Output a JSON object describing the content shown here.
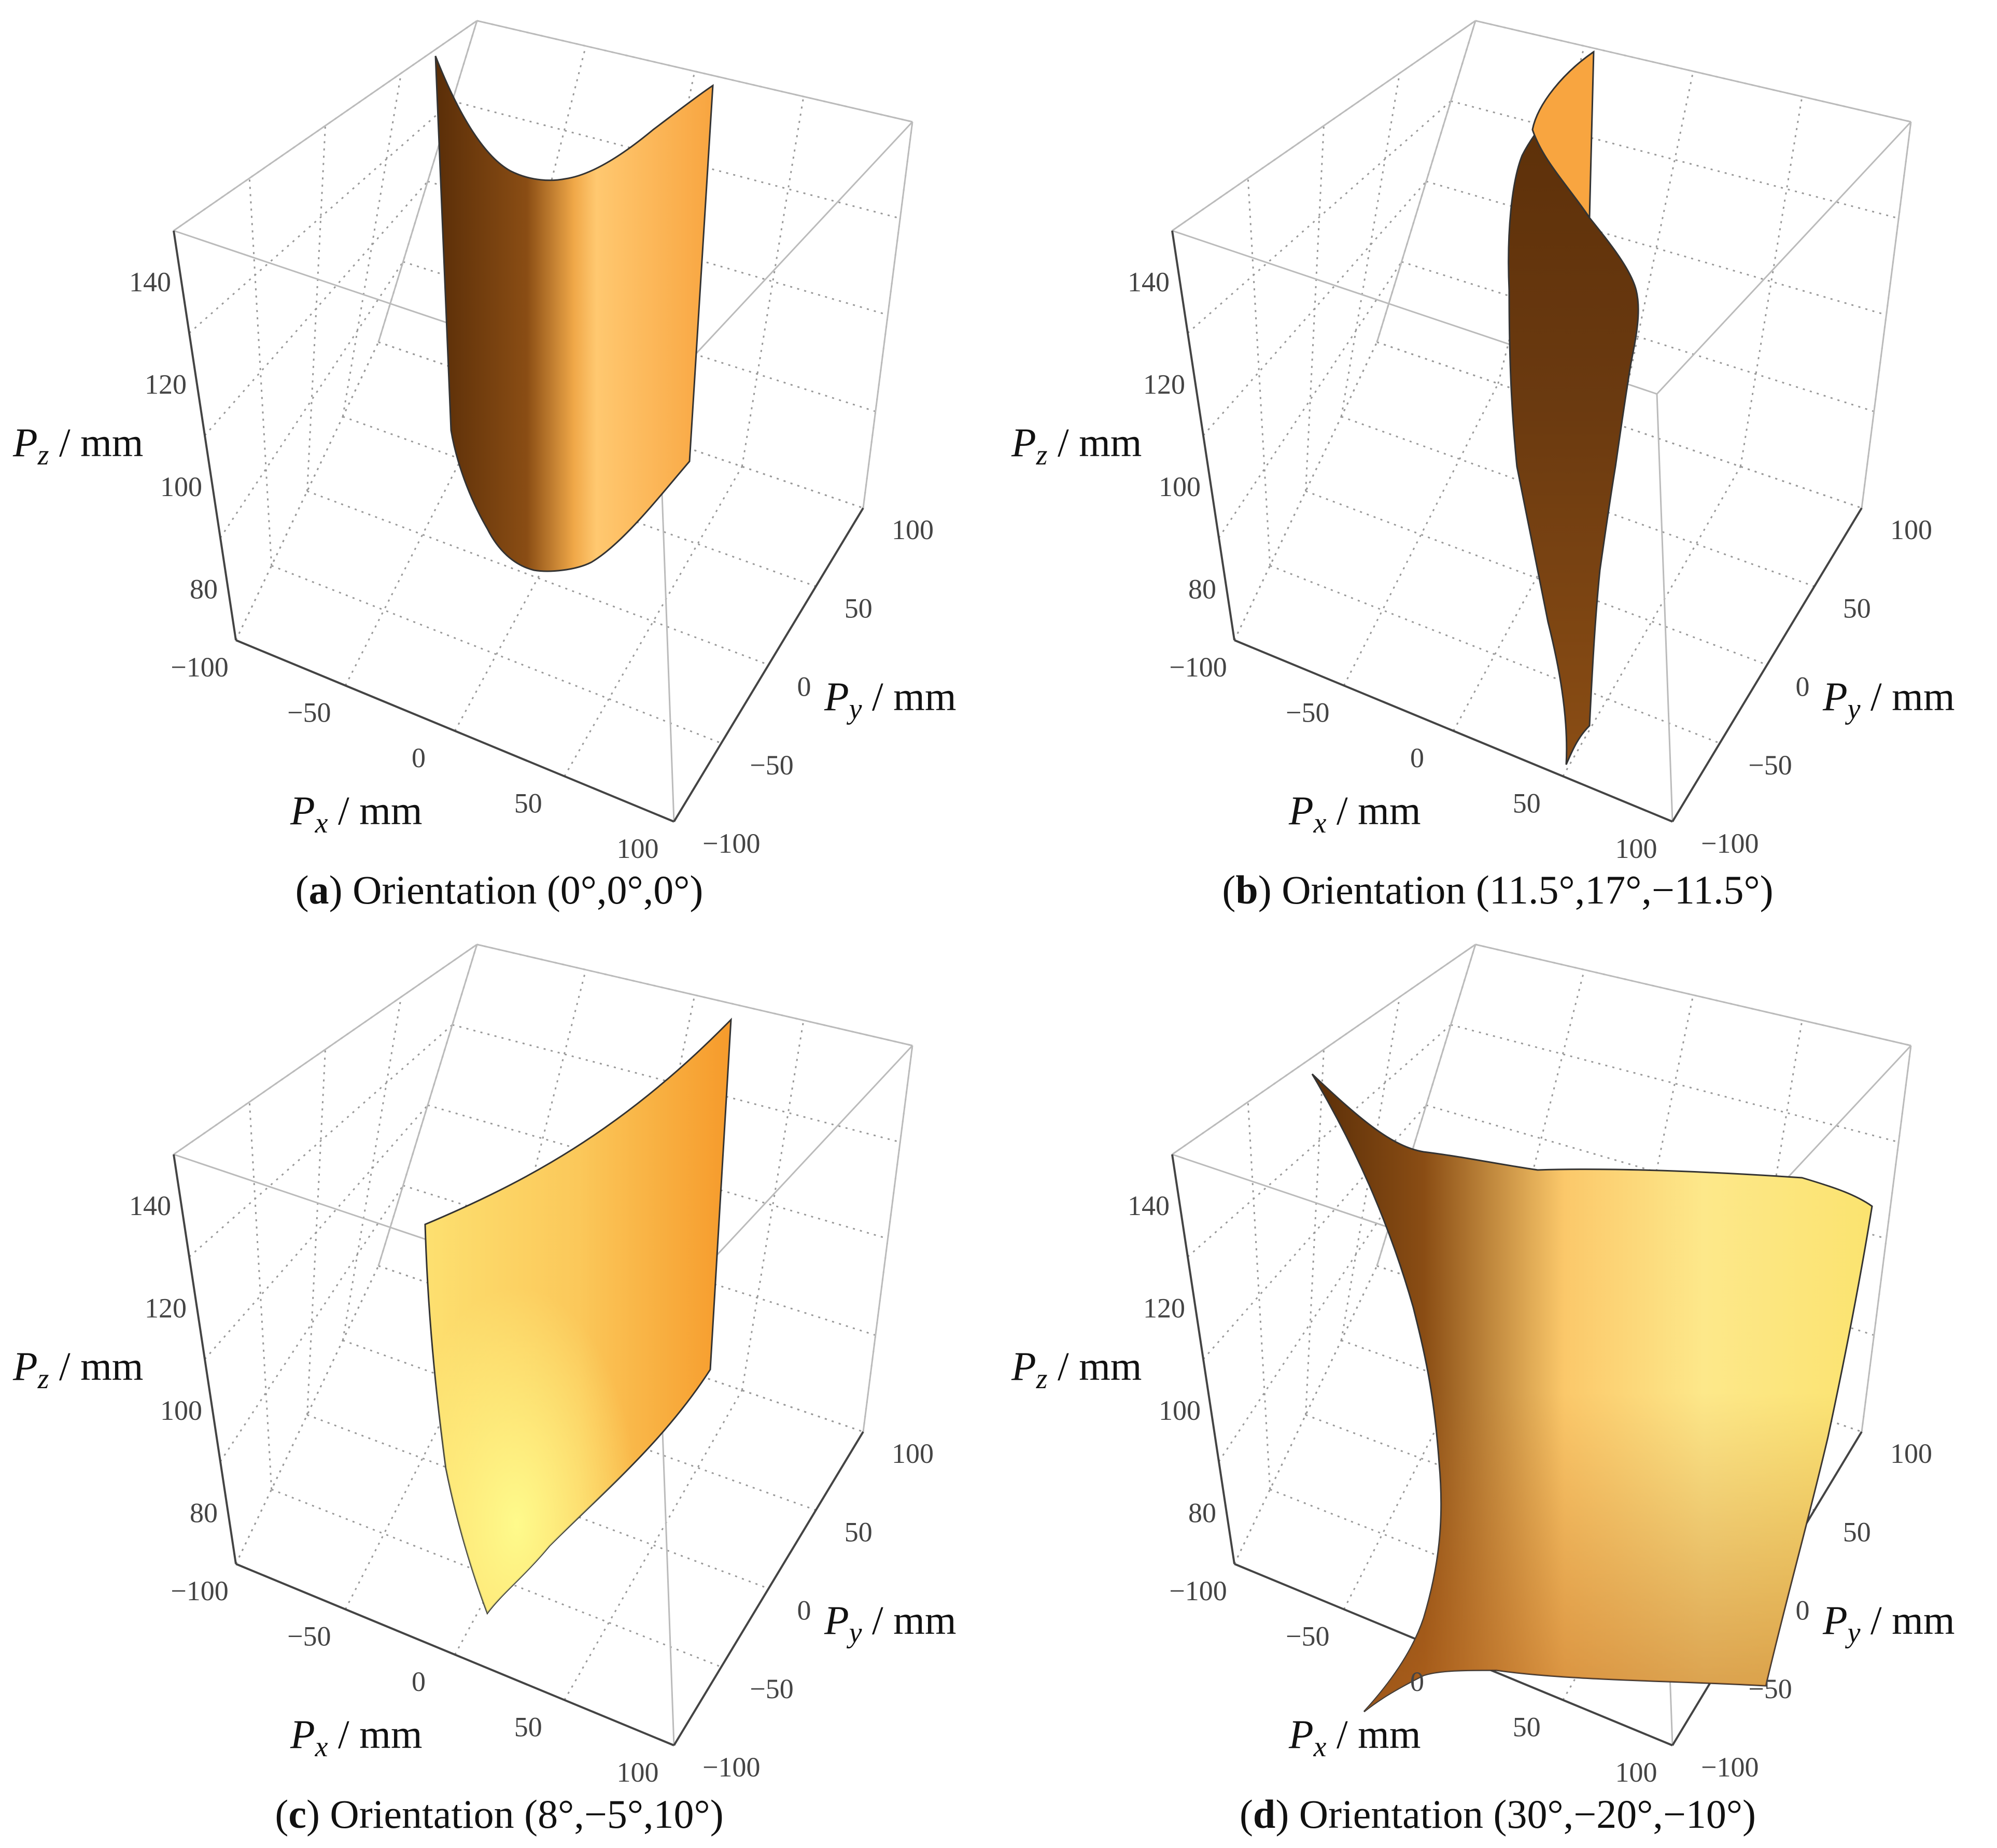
{
  "figure": {
    "panels": [
      {
        "id": "a",
        "caption": {
          "letter": "a",
          "text": "Orientation",
          "orientation": "(0°,0°,0°)"
        }
      },
      {
        "id": "b",
        "caption": {
          "letter": "b",
          "text": "Orientation",
          "orientation": "(11.5°,17°,−11.5°)"
        }
      },
      {
        "id": "c",
        "caption": {
          "letter": "c",
          "text": "Orientation",
          "orientation": "(8°,−5°,10°)"
        }
      },
      {
        "id": "d",
        "caption": {
          "letter": "d",
          "text": "Orientation",
          "orientation": "(30°,−20°,−10°)"
        }
      }
    ]
  },
  "chart_data": [
    {
      "type": "surface3d",
      "title": "Orientation (0°,0°,0°)",
      "xlabel": "P_x / mm",
      "ylabel": "P_y / mm",
      "zlabel": "P_z / mm",
      "xlim": [
        -100,
        100
      ],
      "ylim": [
        -100,
        100
      ],
      "zlim": [
        70,
        150
      ],
      "xticks": [
        "−100",
        "−50",
        "0",
        "50",
        "100"
      ],
      "yticks": [
        "−100",
        "−50",
        "0",
        "50",
        "100"
      ],
      "zticks": [
        "80",
        "100",
        "120",
        "140"
      ],
      "surface_color": "#f5a742",
      "surface_dark": "#5a2e08",
      "description": "vertical U-shaped curved sheet"
    },
    {
      "type": "surface3d",
      "title": "Orientation (11.5°,17°,−11.5°)",
      "xlabel": "P_x / mm",
      "ylabel": "P_y / mm",
      "zlabel": "P_z / mm",
      "xlim": [
        -100,
        100
      ],
      "ylim": [
        -100,
        100
      ],
      "zlim": [
        70,
        150
      ],
      "xticks": [
        "−100",
        "−50",
        "0",
        "50",
        "100"
      ],
      "yticks": [
        "−100",
        "−50",
        "0",
        "50",
        "100"
      ],
      "zticks": [
        "80",
        "100",
        "120",
        "140"
      ],
      "surface_color": "#f5a742",
      "surface_dark": "#5a2e08",
      "description": "thin twisted sheet"
    },
    {
      "type": "surface3d",
      "title": "Orientation (8°,−5°,10°)",
      "xlabel": "P_x / mm",
      "ylabel": "P_y / mm",
      "zlabel": "P_z / mm",
      "xlim": [
        -100,
        100
      ],
      "ylim": [
        -100,
        100
      ],
      "zlim": [
        70,
        150
      ],
      "xticks": [
        "−100",
        "−50",
        "0",
        "50",
        "100"
      ],
      "yticks": [
        "−100",
        "−50",
        "0",
        "50",
        "100"
      ],
      "zticks": [
        "80",
        "100",
        "120",
        "140"
      ],
      "surface_color": "#fdd36a",
      "surface_dark": "#f59a28",
      "description": "broad curved sheet"
    },
    {
      "type": "surface3d",
      "title": "Orientation (30°,−20°,−10°)",
      "xlabel": "P_x / mm",
      "ylabel": "P_y / mm",
      "zlabel": "P_z / mm",
      "xlim": [
        -100,
        100
      ],
      "ylim": [
        -100,
        100
      ],
      "zlim": [
        70,
        150
      ],
      "xticks": [
        "−100",
        "−50",
        "0",
        "50",
        "100"
      ],
      "yticks": [
        "−100",
        "−50",
        "0",
        "50",
        "100"
      ],
      "zticks": [
        "80",
        "100",
        "120",
        "140"
      ],
      "surface_color": "#fbe36f",
      "surface_dark": "#5a2e08",
      "description": "warped saddle-like sheet"
    }
  ]
}
